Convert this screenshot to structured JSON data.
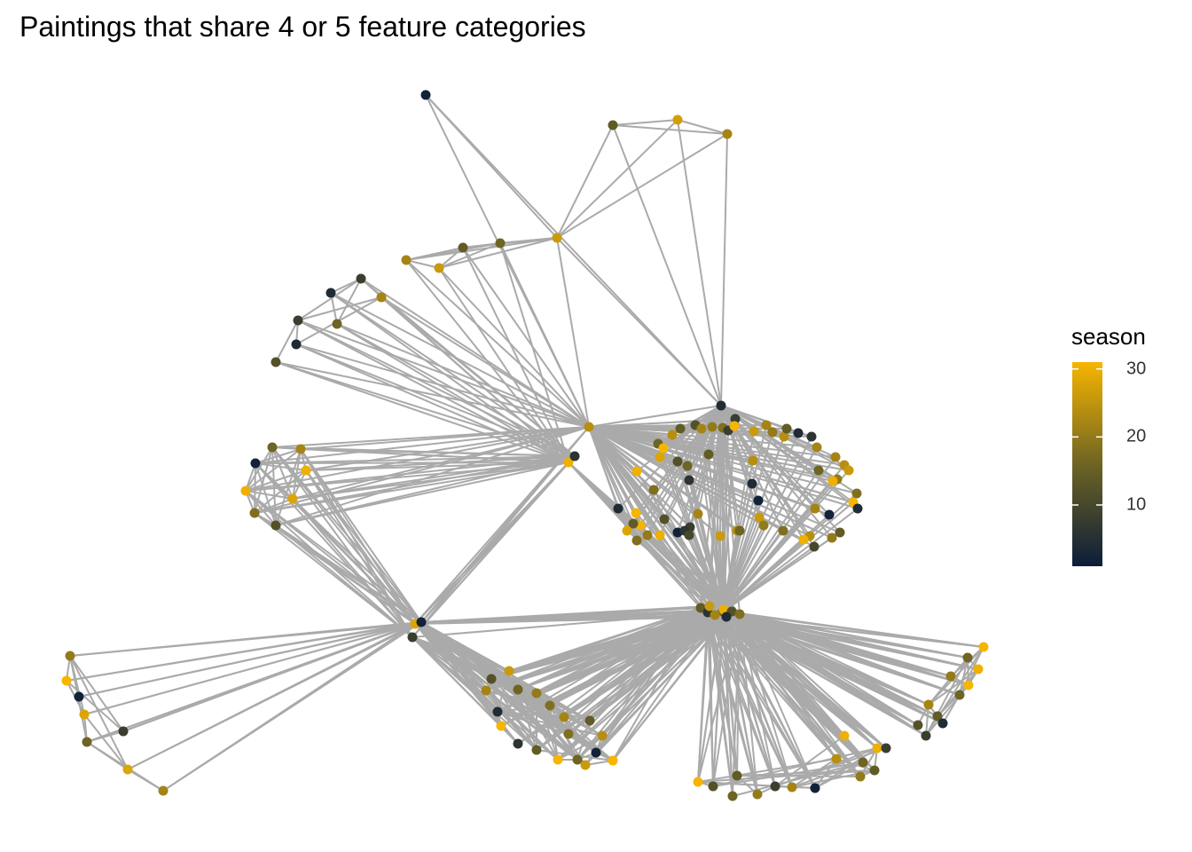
{
  "title": "Paintings that share 4 or 5 feature categories",
  "legend": {
    "title": "season",
    "min": 1,
    "max": 31,
    "ticks": [
      {
        "value": 10,
        "label": "10"
      },
      {
        "value": 20,
        "label": "20"
      },
      {
        "value": 30,
        "label": "30"
      }
    ],
    "low_color": "#0b1d3a",
    "mid_color": "#6e6423",
    "high_color": "#f7b500"
  },
  "edge_color": "#aaaaaa"
}
